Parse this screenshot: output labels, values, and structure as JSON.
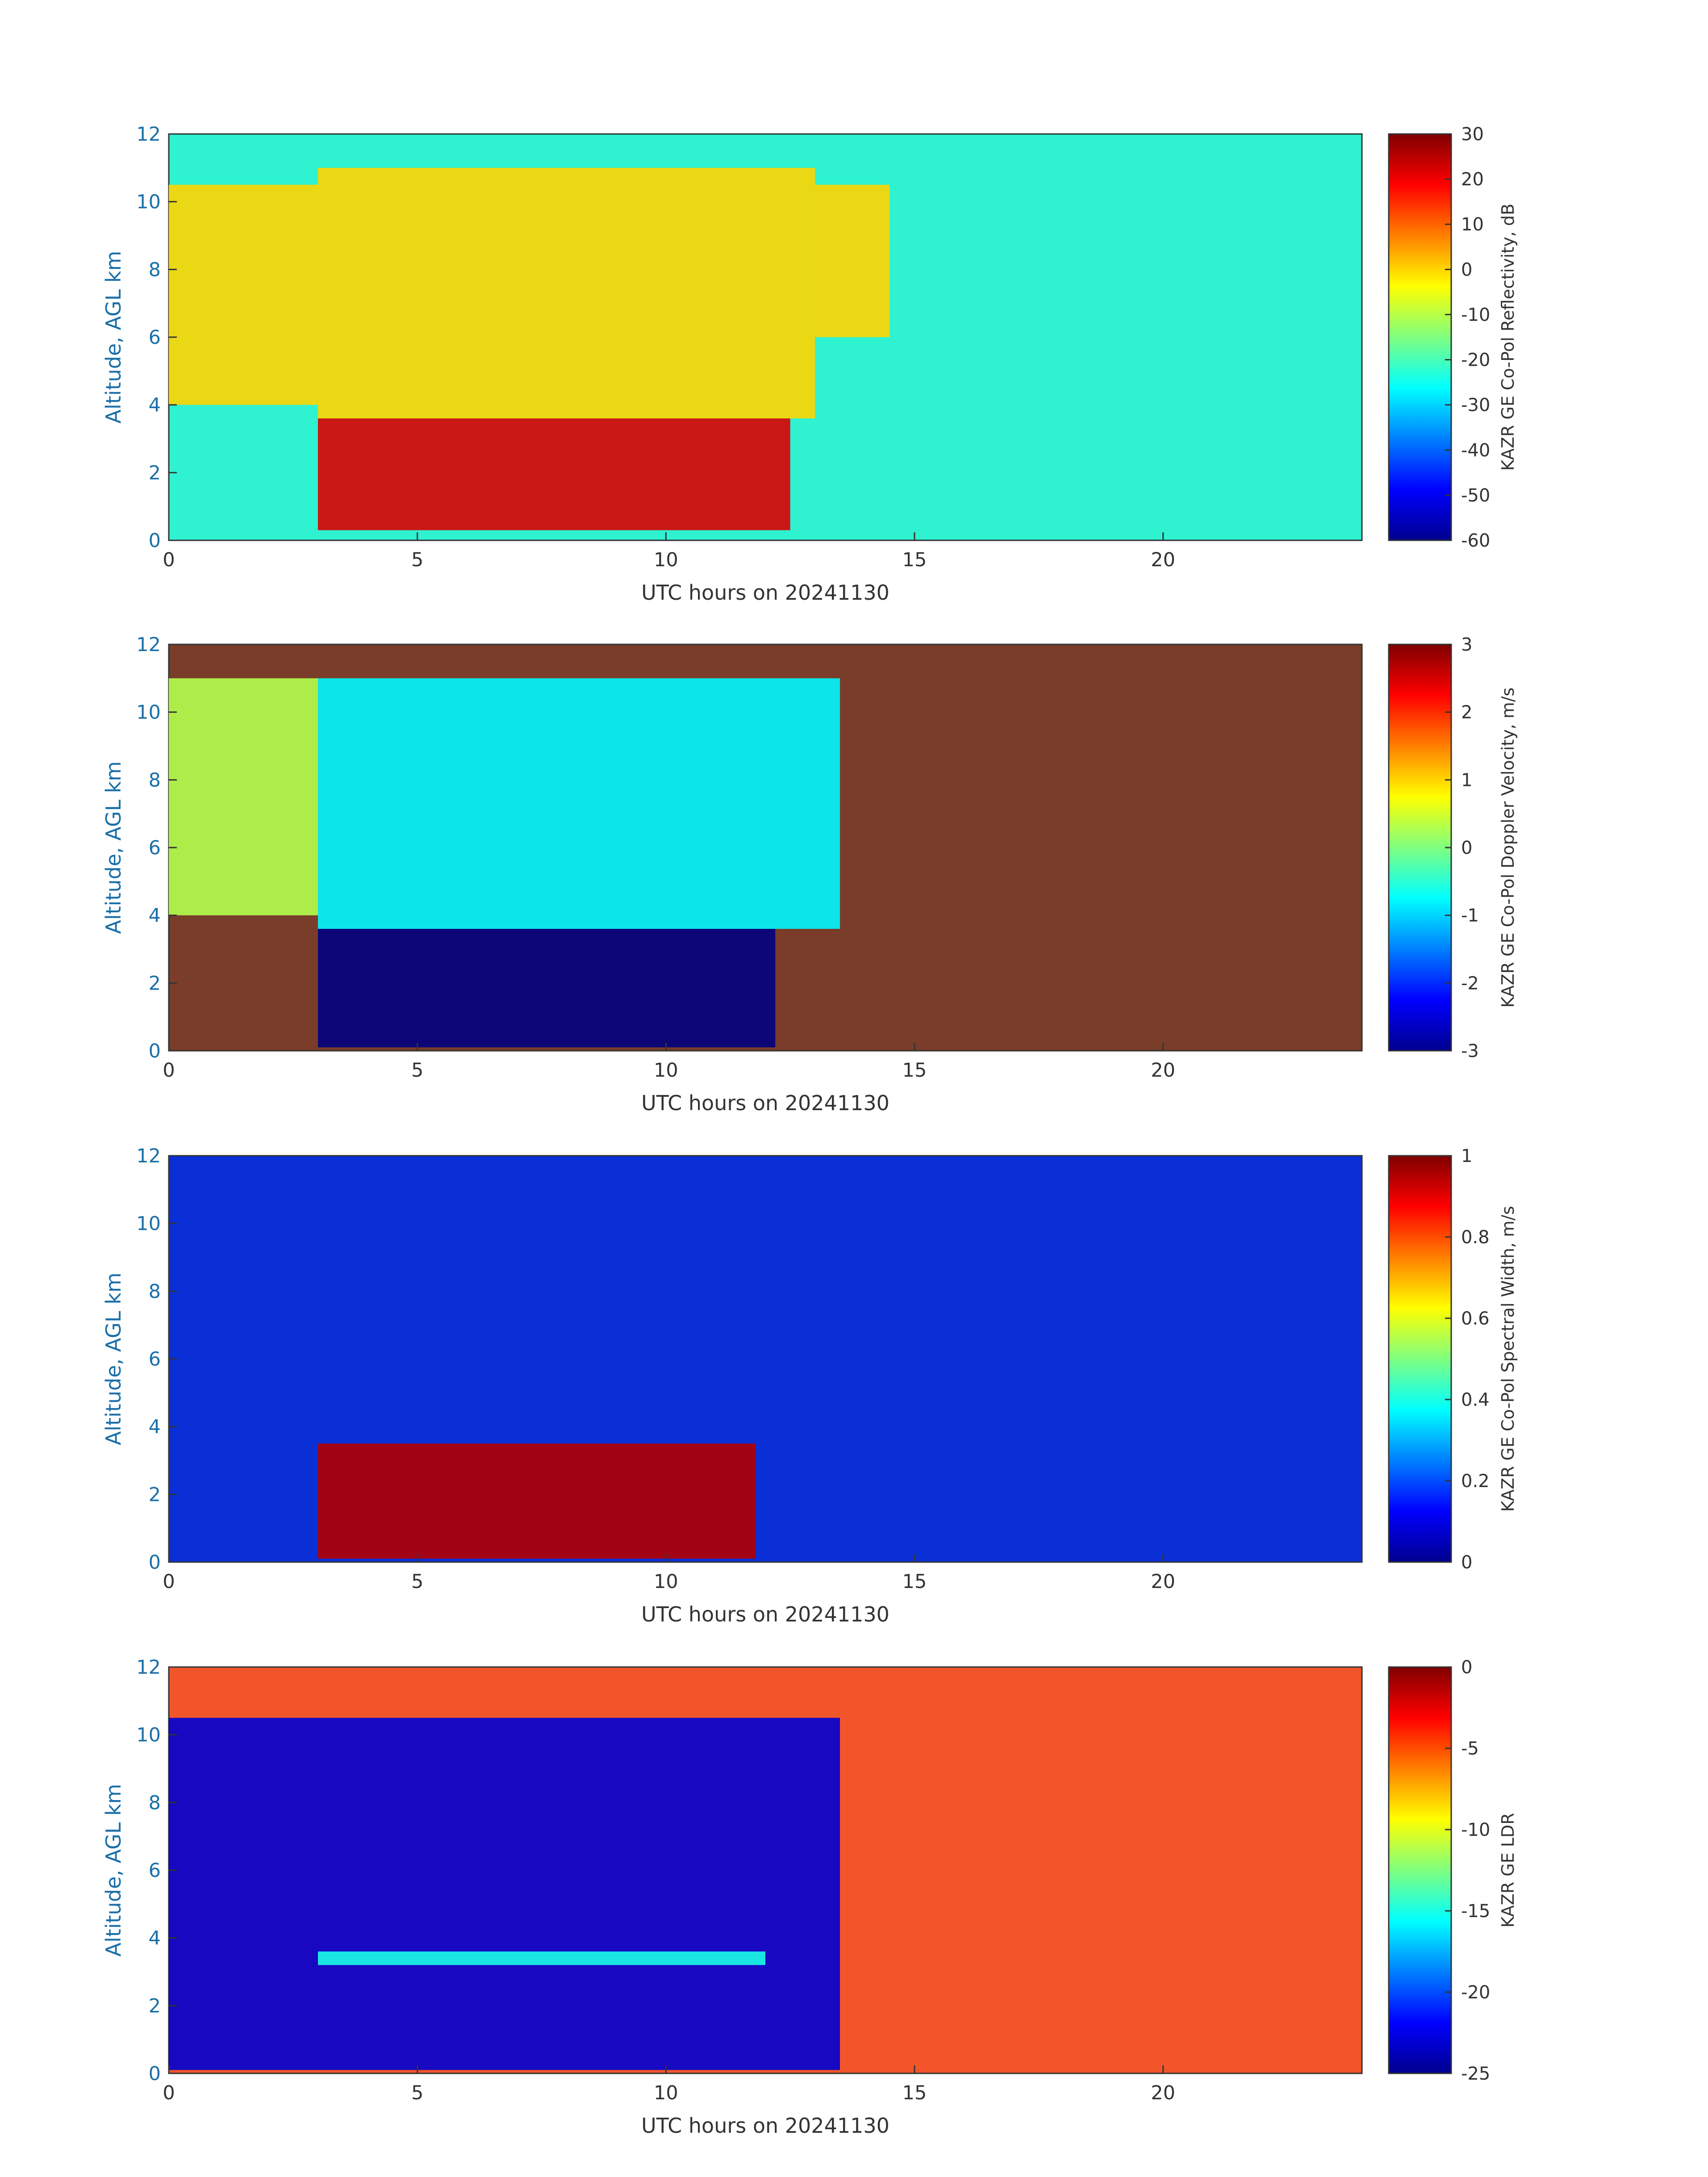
{
  "chart_data": [
    {
      "type": "heatmap",
      "xlabel": "UTC hours on 20241130",
      "ylabel": "Altitude, AGL km",
      "xlim": [
        0,
        24
      ],
      "ylim": [
        0,
        12
      ],
      "x_ticks": [
        "0",
        "5",
        "10",
        "15",
        "20"
      ],
      "y_ticks": [
        "0",
        "2",
        "4",
        "6",
        "8",
        "10",
        "12"
      ],
      "colorbar": {
        "label": "KAZR GE Co-Pol Reflectivity, dB",
        "range": [
          -60,
          30
        ],
        "ticks": [
          "30",
          "20",
          "10",
          "0",
          "-10",
          "-20",
          "-30",
          "-40",
          "-50",
          "-60"
        ],
        "colormap": "jet"
      },
      "background_color": "#2ef2d0",
      "features": [
        {
          "x": [
            0,
            3
          ],
          "y_bottom": 4,
          "y_top": 10.5,
          "value": 0
        },
        {
          "x": [
            3,
            12.5
          ],
          "y_bottom": 0.3,
          "y_top": 3.6,
          "value": 22
        },
        {
          "x": [
            3,
            13
          ],
          "y_bottom": 3.6,
          "y_top": 11,
          "value": 0
        },
        {
          "x": [
            13,
            14.5
          ],
          "y_bottom": 6,
          "y_top": 10.5,
          "value": 0
        }
      ]
    },
    {
      "type": "heatmap",
      "xlabel": "UTC hours on 20241130",
      "ylabel": "Altitude, AGL km",
      "xlim": [
        0,
        24
      ],
      "ylim": [
        0,
        12
      ],
      "x_ticks": [
        "0",
        "5",
        "10",
        "15",
        "20"
      ],
      "y_ticks": [
        "0",
        "2",
        "4",
        "6",
        "8",
        "10",
        "12"
      ],
      "colorbar": {
        "label": "KAZR GE Co-Pol Doppler Velocity, m/s",
        "range": [
          -3,
          3
        ],
        "ticks": [
          "3",
          "2",
          "1",
          "0",
          "-1",
          "-2",
          "-3"
        ],
        "colormap": "jet"
      },
      "background_color": "#7a3d2a",
      "features": [
        {
          "x": [
            0,
            3
          ],
          "y_bottom": 4,
          "y_top": 11,
          "value": 0.3
        },
        {
          "x": [
            3,
            12.2
          ],
          "y_bottom": 0.1,
          "y_top": 3.6,
          "value": -3
        },
        {
          "x": [
            3,
            13.5
          ],
          "y_bottom": 3.6,
          "y_top": 11,
          "value": -0.8
        }
      ]
    },
    {
      "type": "heatmap",
      "xlabel": "UTC hours on 20241130",
      "ylabel": "Altitude, AGL km",
      "xlim": [
        0,
        24
      ],
      "ylim": [
        0,
        12
      ],
      "x_ticks": [
        "0",
        "5",
        "10",
        "15",
        "20"
      ],
      "y_ticks": [
        "0",
        "2",
        "4",
        "6",
        "8",
        "10",
        "12"
      ],
      "colorbar": {
        "label": "KAZR GE Co-Pol Spectral Width, m/s",
        "range": [
          0,
          1
        ],
        "ticks": [
          "1",
          "0.8",
          "0.6",
          "0.4",
          "0.2",
          "0"
        ],
        "colormap": "jet"
      },
      "background_color": "#0a2fd6",
      "features": [
        {
          "x": [
            3,
            11.8
          ],
          "y_bottom": 0.1,
          "y_top": 3.5,
          "value": 0.95
        }
      ]
    },
    {
      "type": "heatmap",
      "xlabel": "UTC hours on 20241130",
      "ylabel": "Altitude, AGL km",
      "xlim": [
        0,
        24
      ],
      "ylim": [
        0,
        12
      ],
      "x_ticks": [
        "0",
        "5",
        "10",
        "15",
        "20"
      ],
      "y_ticks": [
        "0",
        "2",
        "4",
        "6",
        "8",
        "10",
        "12"
      ],
      "colorbar": {
        "label": "KAZR GE LDR",
        "range": [
          -25,
          0
        ],
        "ticks": [
          "0",
          "-5",
          "-10",
          "-15",
          "-20",
          "-25"
        ],
        "colormap": "jet"
      },
      "background_color": "#f2552a",
      "features": [
        {
          "x": [
            0,
            13.5
          ],
          "y_bottom": 0.1,
          "y_top": 10.5,
          "value": -23
        },
        {
          "x": [
            3,
            12
          ],
          "y_bottom": 3.2,
          "y_top": 3.6,
          "value": -15
        }
      ]
    }
  ]
}
